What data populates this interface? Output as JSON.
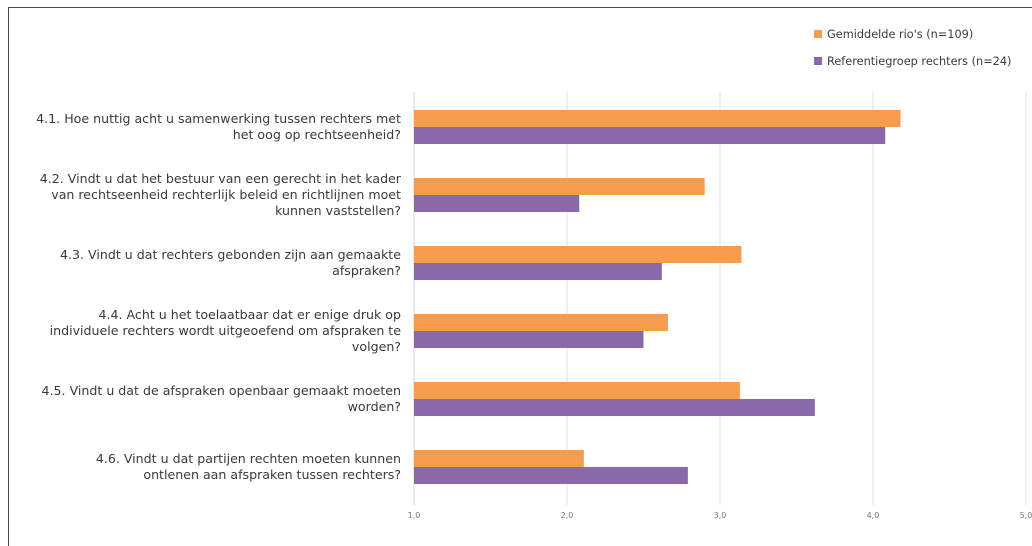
{
  "chart_data": {
    "type": "bar",
    "orientation": "horizontal",
    "categories": [
      [
        "4.1. Hoe nuttig acht u samenwerking tussen rechters met",
        "het oog op rechtseenheid?"
      ],
      [
        "4.2. Vindt u dat het bestuur van een gerecht in het kader",
        "van rechtseenheid rechterlijk beleid en richtlijnen moet",
        "kunnen vaststellen?"
      ],
      [
        "4.3. Vindt u dat rechters gebonden zijn aan gemaakte",
        "afspraken?"
      ],
      [
        "4.4. Acht u het toelaatbaar dat er enige druk op",
        "individuele rechters wordt uitgeoefend om afspraken te",
        "volgen?"
      ],
      [
        "4.5. Vindt u dat de afspraken openbaar gemaakt moeten",
        "worden?"
      ],
      [
        "4.6. Vindt u dat partijen rechten moeten kunnen",
        "ontlenen aan afspraken tussen rechters?"
      ]
    ],
    "series": [
      {
        "name": "Gemiddelde rio's (n=109)",
        "color": "#f79c4c",
        "values": [
          4.18,
          2.9,
          3.14,
          2.66,
          3.13,
          2.11
        ]
      },
      {
        "name": "Referentiegroep rechters (n=24)",
        "color": "#8a69ab",
        "values": [
          4.08,
          2.08,
          2.62,
          2.5,
          3.62,
          2.79
        ]
      }
    ],
    "xlim": [
      1.0,
      5.0
    ],
    "xticks": [
      "1,0",
      "2,0",
      "3,0",
      "4,0",
      "5,0"
    ],
    "grid": true,
    "legend_position": "top-right",
    "title": "",
    "xlabel": "",
    "ylabel": ""
  }
}
